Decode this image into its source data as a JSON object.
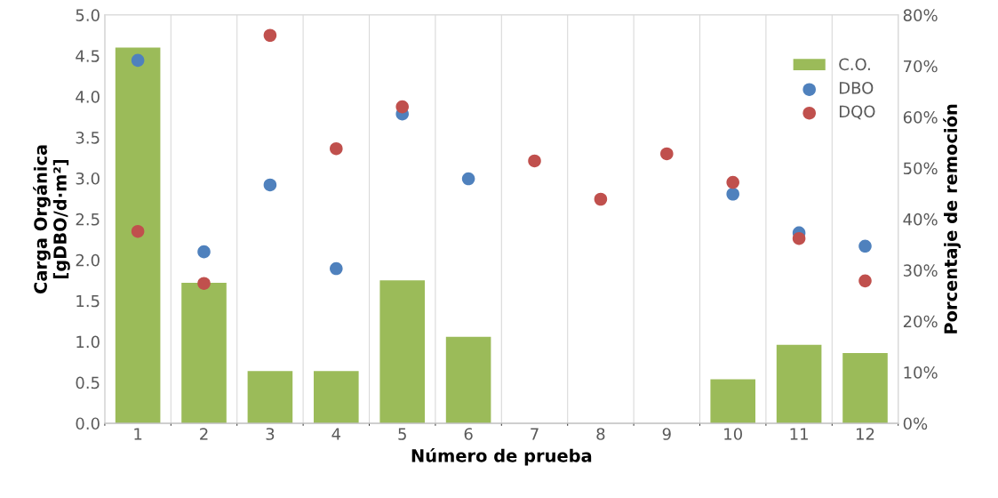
{
  "chart_data": {
    "type": "bar",
    "xlabel": "Número de prueba",
    "ylabel": "Carga Orgánica\n[gDBO/d·m²]",
    "y2label": "Porcentaje de remoción",
    "categories": [
      "1",
      "2",
      "3",
      "4",
      "5",
      "6",
      "7",
      "8",
      "9",
      "10",
      "11",
      "12"
    ],
    "series": [
      {
        "name": "C.O.",
        "color": "#9bbb59",
        "values": [
          4.6,
          1.72,
          0.64,
          0.64,
          1.75,
          1.06,
          null,
          null,
          null,
          0.54,
          0.96,
          0.86
        ]
      },
      {
        "name": "DBO",
        "type": "scatter",
        "axis": "y2",
        "color": "#4f81bd",
        "values": [
          71.1,
          33.6,
          46.7,
          30.3,
          60.6,
          47.9,
          null,
          null,
          null,
          44.9,
          37.3,
          34.7
        ]
      },
      {
        "name": "DQO",
        "type": "scatter",
        "axis": "y2",
        "color": "#c0504d",
        "values": [
          37.6,
          27.4,
          76.0,
          53.8,
          62.0,
          null,
          51.4,
          43.9,
          52.8,
          47.2,
          36.2,
          27.9
        ]
      }
    ],
    "ylim": [
      0,
      5
    ],
    "yticks": [
      {
        "value": 0,
        "label": "0.0"
      },
      {
        "value": 0.5,
        "label": "0.5"
      },
      {
        "value": 1,
        "label": "1.0"
      },
      {
        "value": 1.5,
        "label": "1.5"
      },
      {
        "value": 2,
        "label": "2.0"
      },
      {
        "value": 2.5,
        "label": "2.5"
      },
      {
        "value": 3,
        "label": "3.0"
      },
      {
        "value": 3.5,
        "label": "3.5"
      },
      {
        "value": 4,
        "label": "4.0"
      },
      {
        "value": 4.5,
        "label": "4.5"
      },
      {
        "value": 5,
        "label": "5.0"
      }
    ],
    "y2lim": [
      0,
      80
    ],
    "y2ticks": [
      {
        "value": 0,
        "label": "0%"
      },
      {
        "value": 10,
        "label": "10%"
      },
      {
        "value": 20,
        "label": "20%"
      },
      {
        "value": 30,
        "label": "30%"
      },
      {
        "value": 40,
        "label": "40%"
      },
      {
        "value": 50,
        "label": "50%"
      },
      {
        "value": 60,
        "label": "60%"
      },
      {
        "value": 70,
        "label": "70%"
      },
      {
        "value": 80,
        "label": "80%"
      }
    ],
    "grid": "x",
    "legend": "top right",
    "marker": "circle"
  }
}
